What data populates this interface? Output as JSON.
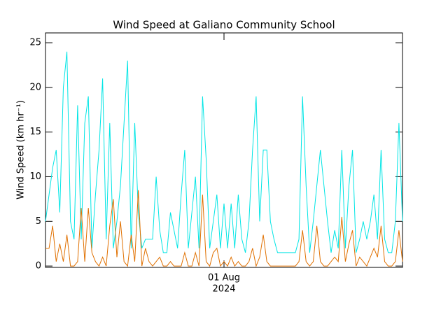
{
  "chart_data": {
    "type": "line",
    "title": "Wind Speed at Galiano Community School",
    "y_label": "Wind Speed (km hr⁻¹)",
    "xlim": [
      0,
      100
    ],
    "xticks": [
      {
        "value": 50,
        "label": "01 Aug"
      }
    ],
    "xtick_year": "2024",
    "ylim": [
      -0.15,
      26.1
    ],
    "yticks": [
      0,
      5,
      10,
      15,
      20,
      25
    ],
    "series": [
      {
        "color": "#00e5e5",
        "values": [
          5,
          8,
          11,
          13,
          6,
          20,
          24,
          5,
          3,
          18,
          3,
          16,
          19,
          2,
          8,
          13,
          21,
          3,
          16,
          2,
          5,
          9,
          16,
          23,
          2,
          16,
          6,
          2,
          3,
          3,
          3,
          10,
          4,
          1.5,
          1.5,
          6,
          4,
          2,
          8,
          13,
          2,
          6,
          10,
          2,
          19,
          12,
          2,
          5,
          8,
          2,
          7,
          2,
          7,
          2,
          8,
          3,
          1.5,
          5,
          13,
          19,
          5,
          13,
          13,
          5,
          3,
          1.5,
          1.5,
          1.5,
          1.5,
          1.5,
          1.5,
          3,
          19,
          9,
          1.5,
          5,
          9,
          13,
          9,
          5,
          1.5,
          4,
          2,
          13,
          2,
          9,
          13,
          1.5,
          3,
          5,
          3,
          5,
          8,
          3,
          13,
          3,
          1.5,
          1.5,
          5,
          16,
          5
        ]
      },
      {
        "color": "#e07000",
        "values": [
          2,
          2,
          4.5,
          0.5,
          2.5,
          0.5,
          3.5,
          0,
          0,
          0.5,
          6.5,
          0.5,
          6.5,
          1.5,
          0.5,
          0,
          1,
          0,
          4.5,
          7.5,
          1,
          5,
          0.5,
          0,
          3.5,
          0.5,
          8.5,
          0,
          2,
          0.5,
          0,
          0.5,
          1,
          0,
          0,
          0.5,
          0,
          0,
          0,
          1.5,
          0,
          0,
          1.5,
          0,
          8,
          0.5,
          0,
          1.5,
          2,
          0,
          0.5,
          0,
          1,
          0,
          0.5,
          0,
          0,
          0.5,
          2,
          0,
          1,
          3.5,
          0.5,
          0,
          0,
          0,
          0,
          0,
          0,
          0,
          0,
          0.5,
          4,
          0.5,
          0,
          0.5,
          4.5,
          0.5,
          0,
          0,
          0.5,
          1,
          0.5,
          5.5,
          0.5,
          2.5,
          4,
          0,
          1,
          0.5,
          0,
          1,
          2,
          1,
          4.5,
          0.5,
          0,
          0,
          0.5,
          4,
          0.5
        ]
      }
    ]
  }
}
